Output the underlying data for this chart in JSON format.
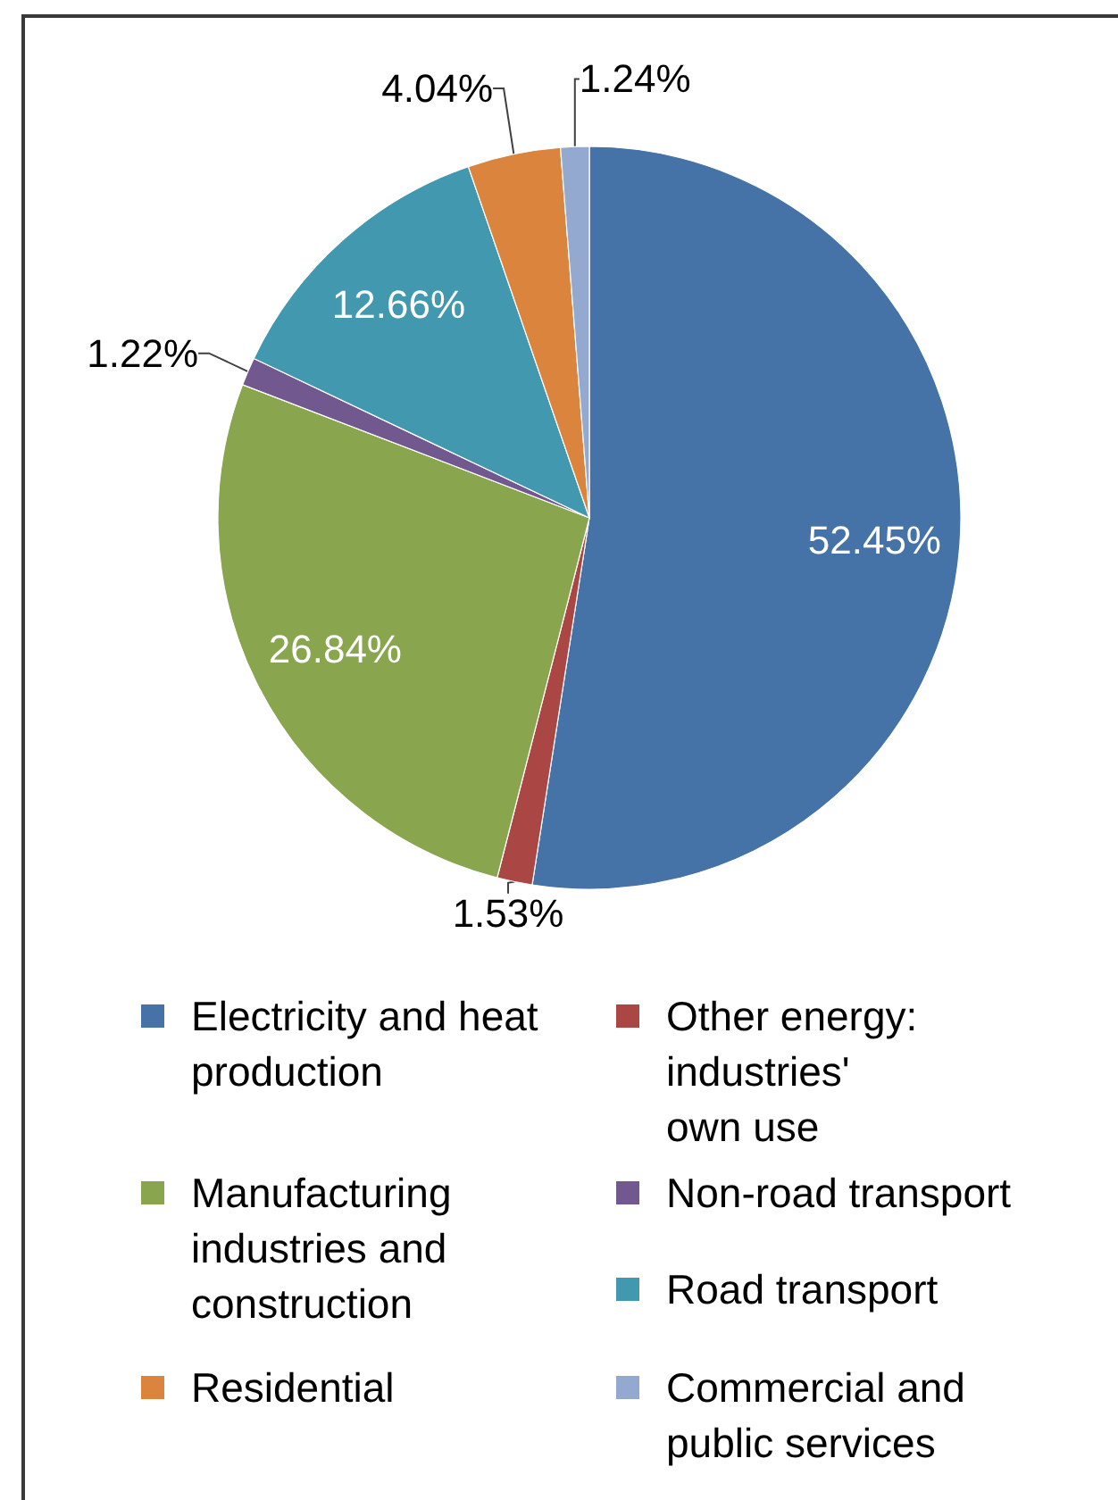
{
  "chart_data": {
    "type": "pie",
    "categories": [
      "Electricity and heat production",
      "Other energy: industries' own use",
      "Manufacturing industries and construction",
      "Non-road transport",
      "Road transport",
      "Residential",
      "Commercial and public services"
    ],
    "values": [
      52.45,
      1.53,
      26.84,
      1.22,
      12.66,
      4.04,
      1.24
    ],
    "value_labels": [
      "52.45%",
      "1.53%",
      "26.84%",
      "1.22%",
      "12.66%",
      "4.04%",
      "1.24%"
    ],
    "colors": [
      "#4572a7",
      "#aa4643",
      "#89a54e",
      "#71588f",
      "#4198af",
      "#db843d",
      "#93a9cf"
    ],
    "legend": "bottom"
  }
}
